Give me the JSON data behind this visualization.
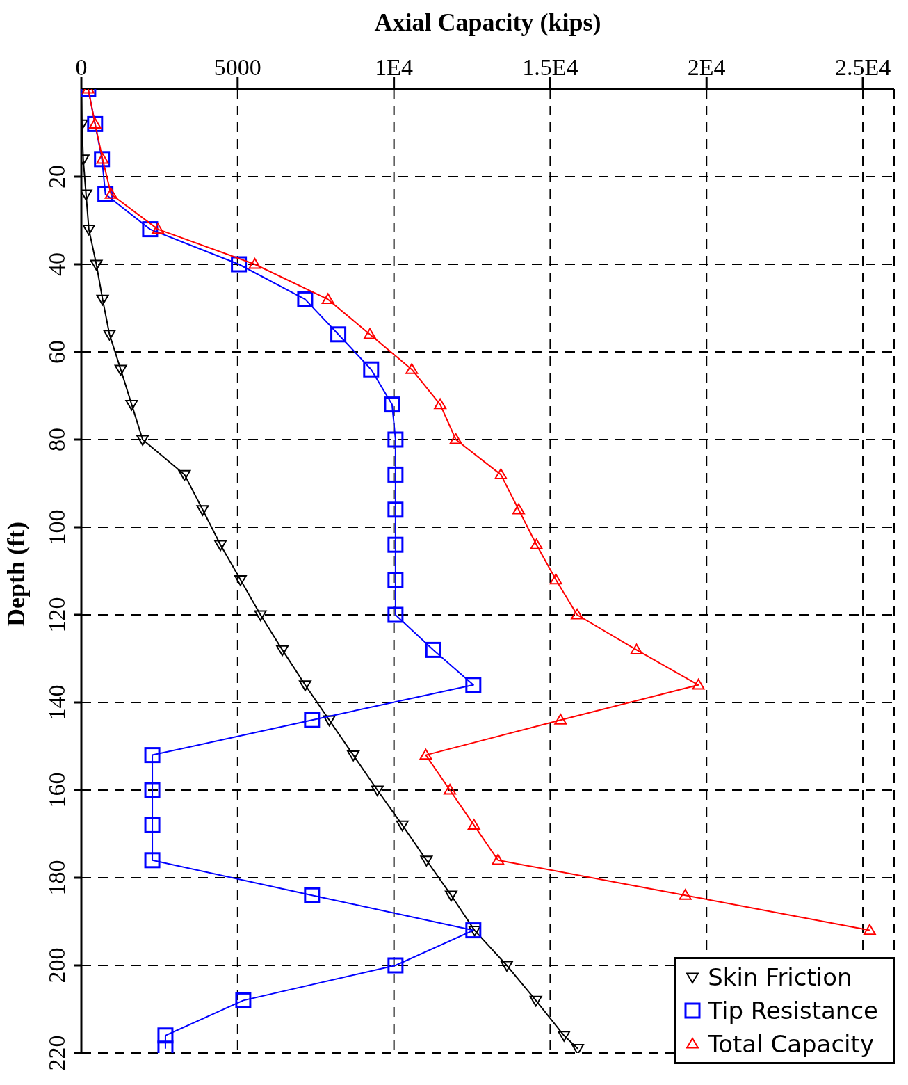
{
  "chart_data": {
    "type": "line",
    "orientation": "horizontal",
    "xlabel": "Axial Capacity (kips)",
    "ylabel": "Depth (ft)",
    "x": [
      0,
      8,
      16,
      24,
      32,
      40,
      48,
      56,
      64,
      72,
      80,
      88,
      96,
      104,
      112,
      120,
      128,
      136,
      144,
      152,
      160,
      168,
      176,
      184,
      192,
      200,
      208,
      216,
      219
    ],
    "series": [
      {
        "name": "Skin Friction",
        "color": "#000000",
        "marker": "triangle_down",
        "values": [
          0,
          20,
          60,
          150,
          240,
          480,
          680,
          900,
          1260,
          1610,
          1960,
          3300,
          3880,
          4450,
          5090,
          5730,
          6430,
          7160,
          7930,
          8700,
          9470,
          10270,
          11040,
          11830,
          12580,
          13610,
          14540,
          15440,
          15880
        ]
      },
      {
        "name": "Tip Resistance",
        "color": "#0000ff",
        "marker": "square",
        "values": [
          220,
          440,
          660,
          770,
          2200,
          5040,
          7160,
          8220,
          9270,
          9940,
          10050,
          10050,
          10050,
          10050,
          10050,
          10050,
          11260,
          12540,
          7380,
          2270,
          2270,
          2270,
          2270,
          7380,
          12540,
          10050,
          5180,
          2690,
          2690
        ]
      },
      {
        "name": "Total Capacity",
        "color": "#ff0000",
        "marker": "triangle",
        "values": [
          220,
          440,
          680,
          950,
          2450,
          5550,
          7890,
          9230,
          10570,
          11480,
          11980,
          13420,
          13990,
          14560,
          15180,
          15860,
          17760,
          19740,
          15330,
          11020,
          11790,
          12560,
          13330,
          19320,
          25220,
          null,
          null,
          null,
          null
        ]
      }
    ],
    "xlim": [
      0,
      26000
    ],
    "xticks": [
      0,
      5000,
      {
        "value": 10000,
        "label": "1E4"
      },
      {
        "value": 15000,
        "label": "1.5E4"
      },
      {
        "value": 20000,
        "label": "2E4"
      },
      {
        "value": 25000,
        "label": "2.5E4"
      }
    ],
    "ylim": [
      220,
      0
    ],
    "yticks": [
      20,
      40,
      60,
      80,
      100,
      120,
      140,
      160,
      180,
      200,
      220
    ],
    "grid": true,
    "line_style": "solid",
    "legend": "bottom right"
  }
}
